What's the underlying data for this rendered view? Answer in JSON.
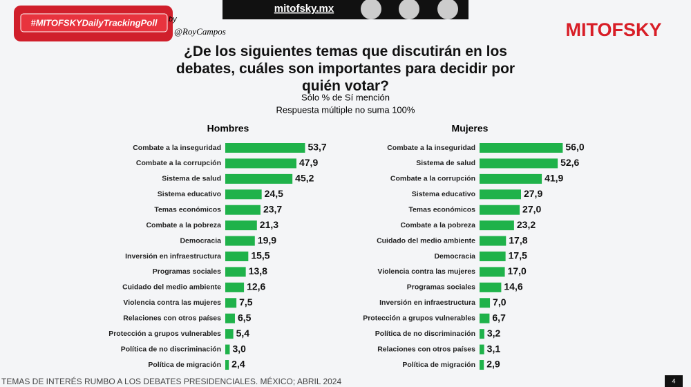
{
  "header": {
    "hashtag": "#MITOFSKYDailyTrackingPoll",
    "by": "by",
    "author": "@RoyCampos",
    "site": "mitofsky.mx",
    "brand": "MITOFSKY",
    "title": "¿De los siguientes temas que discutirán en los debates, cuáles son importantes para decidir por quién votar?",
    "subtitle": [
      "Sólo % de Sí mención",
      "Respuesta múltiple no suma 100%"
    ]
  },
  "chart_data": [
    {
      "type": "bar",
      "orientation": "horizontal",
      "title": "Hombres",
      "color": "#1fb24a",
      "categories": [
        "Combate a la inseguridad",
        "Combate a la corrupción",
        "Sistema de salud",
        "Sistema educativo",
        "Temas económicos",
        "Combate a la pobreza",
        "Democracia",
        "Inversión en infraestructura",
        "Programas sociales",
        "Cuidado del medio ambiente",
        "Violencia contra las mujeres",
        "Relaciones con otros países",
        "Protección a grupos vulnerables",
        "Política de no discriminación",
        "Política de migración"
      ],
      "values": [
        53.7,
        47.9,
        45.2,
        24.5,
        23.7,
        21.3,
        19.9,
        15.5,
        13.8,
        12.6,
        7.5,
        6.5,
        5.4,
        3.0,
        2.4
      ],
      "value_labels": [
        "53,7",
        "47,9",
        "45,2",
        "24,5",
        "23,7",
        "21,3",
        "19,9",
        "15,5",
        "13,8",
        "12,6",
        "7,5",
        "6,5",
        "5,4",
        "3,0",
        "2,4"
      ]
    },
    {
      "type": "bar",
      "orientation": "horizontal",
      "title": "Mujeres",
      "color": "#1fb24a",
      "categories": [
        "Combate a la inseguridad",
        "Sistema de salud",
        "Combate a la corrupción",
        "Sistema educativo",
        "Temas económicos",
        "Combate a la pobreza",
        "Cuidado del medio ambiente",
        "Democracia",
        "Violencia contra las mujeres",
        "Programas sociales",
        "Inversión en infraestructura",
        "Protección a grupos vulnerables",
        "Política de no discriminación",
        "Relaciones con otros países",
        "Política de migración"
      ],
      "values": [
        56.0,
        52.6,
        41.9,
        27.9,
        27.0,
        23.2,
        17.8,
        17.5,
        17.0,
        14.6,
        7.0,
        6.7,
        3.2,
        3.1,
        2.9
      ],
      "value_labels": [
        "56,0",
        "52,6",
        "41,9",
        "27,9",
        "27,0",
        "23,2",
        "17,8",
        "17,5",
        "17,0",
        "14,6",
        "7,0",
        "6,7",
        "3,2",
        "3,1",
        "2,9"
      ]
    }
  ],
  "footer": {
    "source": "TEMAS DE INTERÉS RUMBO A LOS DEBATES PRESIDENCIALES. MÉXICO; ABRIL 2024",
    "page": "4"
  }
}
